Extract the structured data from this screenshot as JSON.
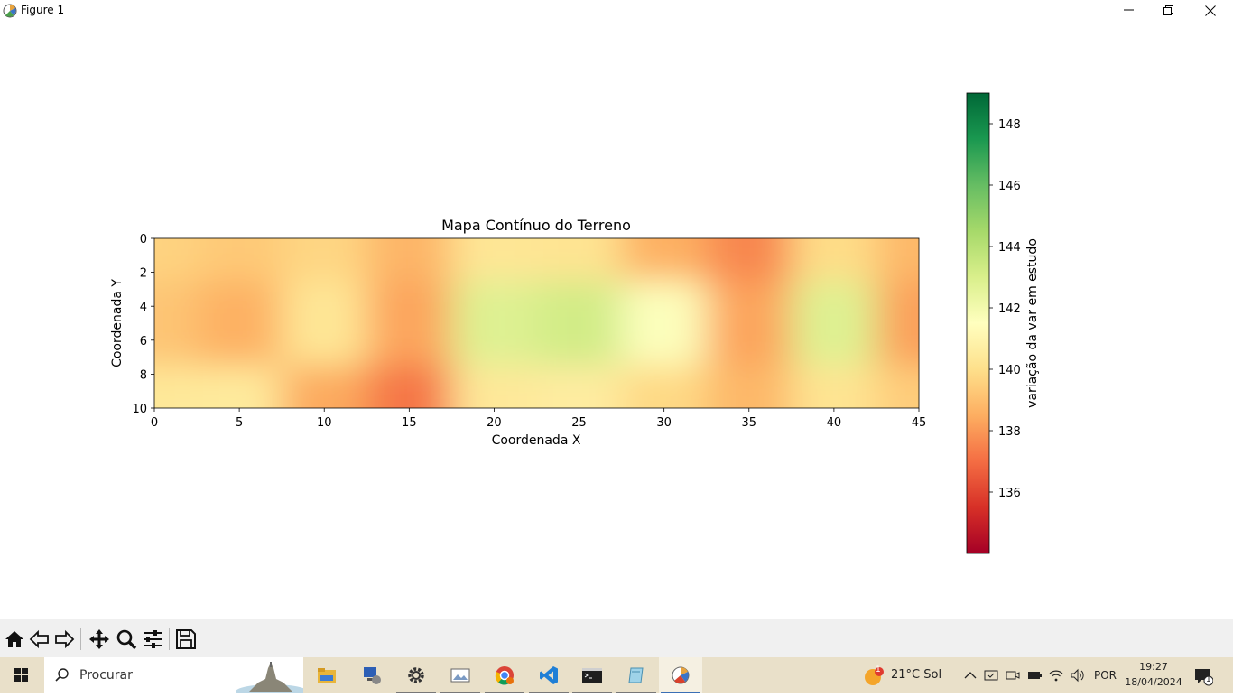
{
  "window": {
    "title": "Figure 1"
  },
  "chart_data": {
    "type": "heatmap",
    "title": "Mapa Contínuo do Terreno",
    "xlabel": "Coordenada X",
    "ylabel": "Coordenada Y",
    "xlim": [
      0,
      45
    ],
    "ylim": [
      10,
      0
    ],
    "x_ticks": [
      "0",
      "5",
      "10",
      "15",
      "20",
      "25",
      "30",
      "35",
      "40",
      "45"
    ],
    "y_ticks": [
      "0",
      "2",
      "4",
      "6",
      "8",
      "10"
    ],
    "colorbar": {
      "label": "variação da var em estudo",
      "range": [
        134,
        149
      ],
      "ticks": [
        "136",
        "138",
        "140",
        "142",
        "144",
        "146",
        "148"
      ],
      "colormap": "RdYlGn"
    },
    "grid": false,
    "x": [
      0,
      5,
      10,
      15,
      20,
      25,
      30,
      35,
      40,
      45
    ],
    "y": [
      0,
      5,
      10
    ],
    "z": [
      [
        139.6,
        139.3,
        139.7,
        138.7,
        140.3,
        140.2,
        138.6,
        137.6,
        139.9,
        138.8
      ],
      [
        139.2,
        138.6,
        140.3,
        138.3,
        142.8,
        143.2,
        141.6,
        138.3,
        142.8,
        138.2
      ],
      [
        140.4,
        140.5,
        138.4,
        137.2,
        140.4,
        140.6,
        139.8,
        138.8,
        140.2,
        139.4
      ]
    ]
  },
  "toolbar": {
    "tools": [
      "home-icon",
      "back-icon",
      "forward-icon",
      "pan-icon",
      "zoom-icon",
      "configure-icon",
      "save-icon"
    ]
  },
  "taskbar": {
    "search_placeholder": "Procurar",
    "weather_badge": "1",
    "weather_text": "21°C  Sol",
    "language": "POR",
    "time": "19:27",
    "date": "18/04/2024",
    "notifications_count": "1",
    "apps": [
      "file-explorer-icon",
      "remote-desktop-icon",
      "settings-icon",
      "photos-icon",
      "chrome-icon",
      "vscode-icon",
      "terminal-icon",
      "notepad-icon",
      "matplotlib-icon"
    ]
  }
}
